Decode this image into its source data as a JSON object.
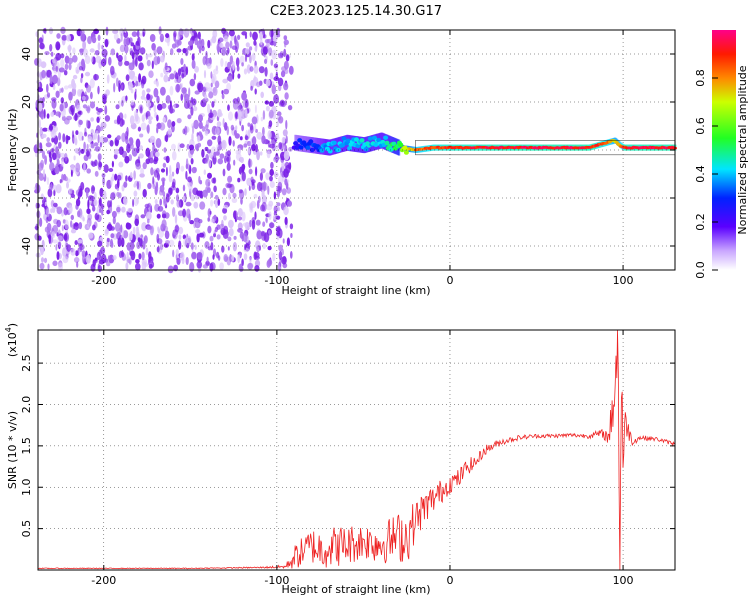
{
  "title": "C2E3.2023.125.14.30.G17",
  "colors": {
    "snr_line": "#ee2222",
    "noise_purple": "#7a1fe6",
    "axis": "#000000"
  },
  "chart_data": [
    {
      "type": "heatmap",
      "name": "spectrogram",
      "xlabel": "Height of straight line (km)",
      "ylabel": "Frequency (Hz)",
      "xlim": [
        -238,
        130
      ],
      "ylim": [
        -50,
        50
      ],
      "xticks": [
        -200,
        -100,
        0,
        100
      ],
      "yticks": [
        -40,
        -20,
        0,
        20,
        40
      ],
      "grid": true,
      "noise_region_km": [
        -238,
        -95
      ],
      "signal_track": {
        "x": [
          -90,
          -80,
          -70,
          -60,
          -50,
          -40,
          -30,
          -20,
          -10,
          0,
          20,
          40,
          60,
          80,
          90,
          95,
          98,
          100,
          110,
          120,
          130
        ],
        "freq": [
          3,
          2,
          1,
          3,
          2,
          4,
          1,
          0,
          1,
          1,
          1,
          1,
          1,
          1,
          3,
          4,
          2,
          1,
          1,
          1,
          1
        ],
        "intensity": [
          0.25,
          0.3,
          0.38,
          0.38,
          0.42,
          0.38,
          0.55,
          0.8,
          0.88,
          0.9,
          0.92,
          0.93,
          0.93,
          0.93,
          0.85,
          0.75,
          0.8,
          0.92,
          0.93,
          0.93,
          0.93
        ]
      }
    },
    {
      "type": "colorbar",
      "name": "colorbar",
      "label": "Normalized spectral amplitude",
      "range": [
        0.0,
        1.0
      ],
      "ticks": [
        0.0,
        0.2,
        0.4,
        0.6,
        0.8
      ],
      "tick_labels": [
        "0.0",
        "0.2",
        "0.4",
        "0.6",
        "0.8"
      ]
    },
    {
      "type": "line",
      "name": "snr",
      "xlabel": "Height of straight line (km)",
      "ylabel": "SNR (10 * v/v)",
      "multiplier": "(x10",
      "multiplier_exp": "4",
      "multiplier_close": ")",
      "xlim": [
        -238,
        130
      ],
      "ylim": [
        0,
        2.9
      ],
      "xticks": [
        -200,
        -100,
        0,
        100
      ],
      "yticks": [
        0.5,
        1.0,
        1.5,
        2.0,
        2.5
      ],
      "grid": true,
      "series": [
        {
          "x": [
            -238,
            -200,
            -150,
            -110,
            -95,
            -90,
            -80,
            -75,
            -70,
            -60,
            -50,
            -40,
            -30,
            -25,
            -20,
            -15,
            -10,
            -5,
            0,
            5,
            10,
            15,
            20,
            25,
            30,
            40,
            50,
            60,
            70,
            80,
            88,
            92,
            95,
            97,
            98,
            99,
            100,
            102,
            105,
            110,
            120,
            130
          ],
          "y": [
            0.02,
            0.02,
            0.02,
            0.03,
            0.04,
            0.15,
            0.3,
            0.25,
            0.28,
            0.3,
            0.35,
            0.32,
            0.4,
            0.4,
            0.6,
            0.75,
            0.85,
            0.95,
            1.05,
            1.1,
            1.25,
            1.3,
            1.45,
            1.5,
            1.55,
            1.6,
            1.62,
            1.62,
            1.63,
            1.62,
            1.65,
            1.6,
            2.2,
            2.85,
            0.2,
            2.3,
            1.4,
            1.8,
            1.55,
            1.6,
            1.58,
            1.52
          ],
          "noise": [
            0.005,
            0.005,
            0.005,
            0.008,
            0.02,
            0.15,
            0.22,
            0.25,
            0.25,
            0.25,
            0.22,
            0.25,
            0.3,
            0.35,
            0.25,
            0.2,
            0.18,
            0.15,
            0.12,
            0.12,
            0.1,
            0.08,
            0.06,
            0.05,
            0.04,
            0.03,
            0.025,
            0.025,
            0.025,
            0.03,
            0.05,
            0.1,
            0.5,
            0.8,
            0.8,
            0.8,
            0.5,
            0.2,
            0.05,
            0.03,
            0.025,
            0.025
          ]
        }
      ]
    }
  ]
}
